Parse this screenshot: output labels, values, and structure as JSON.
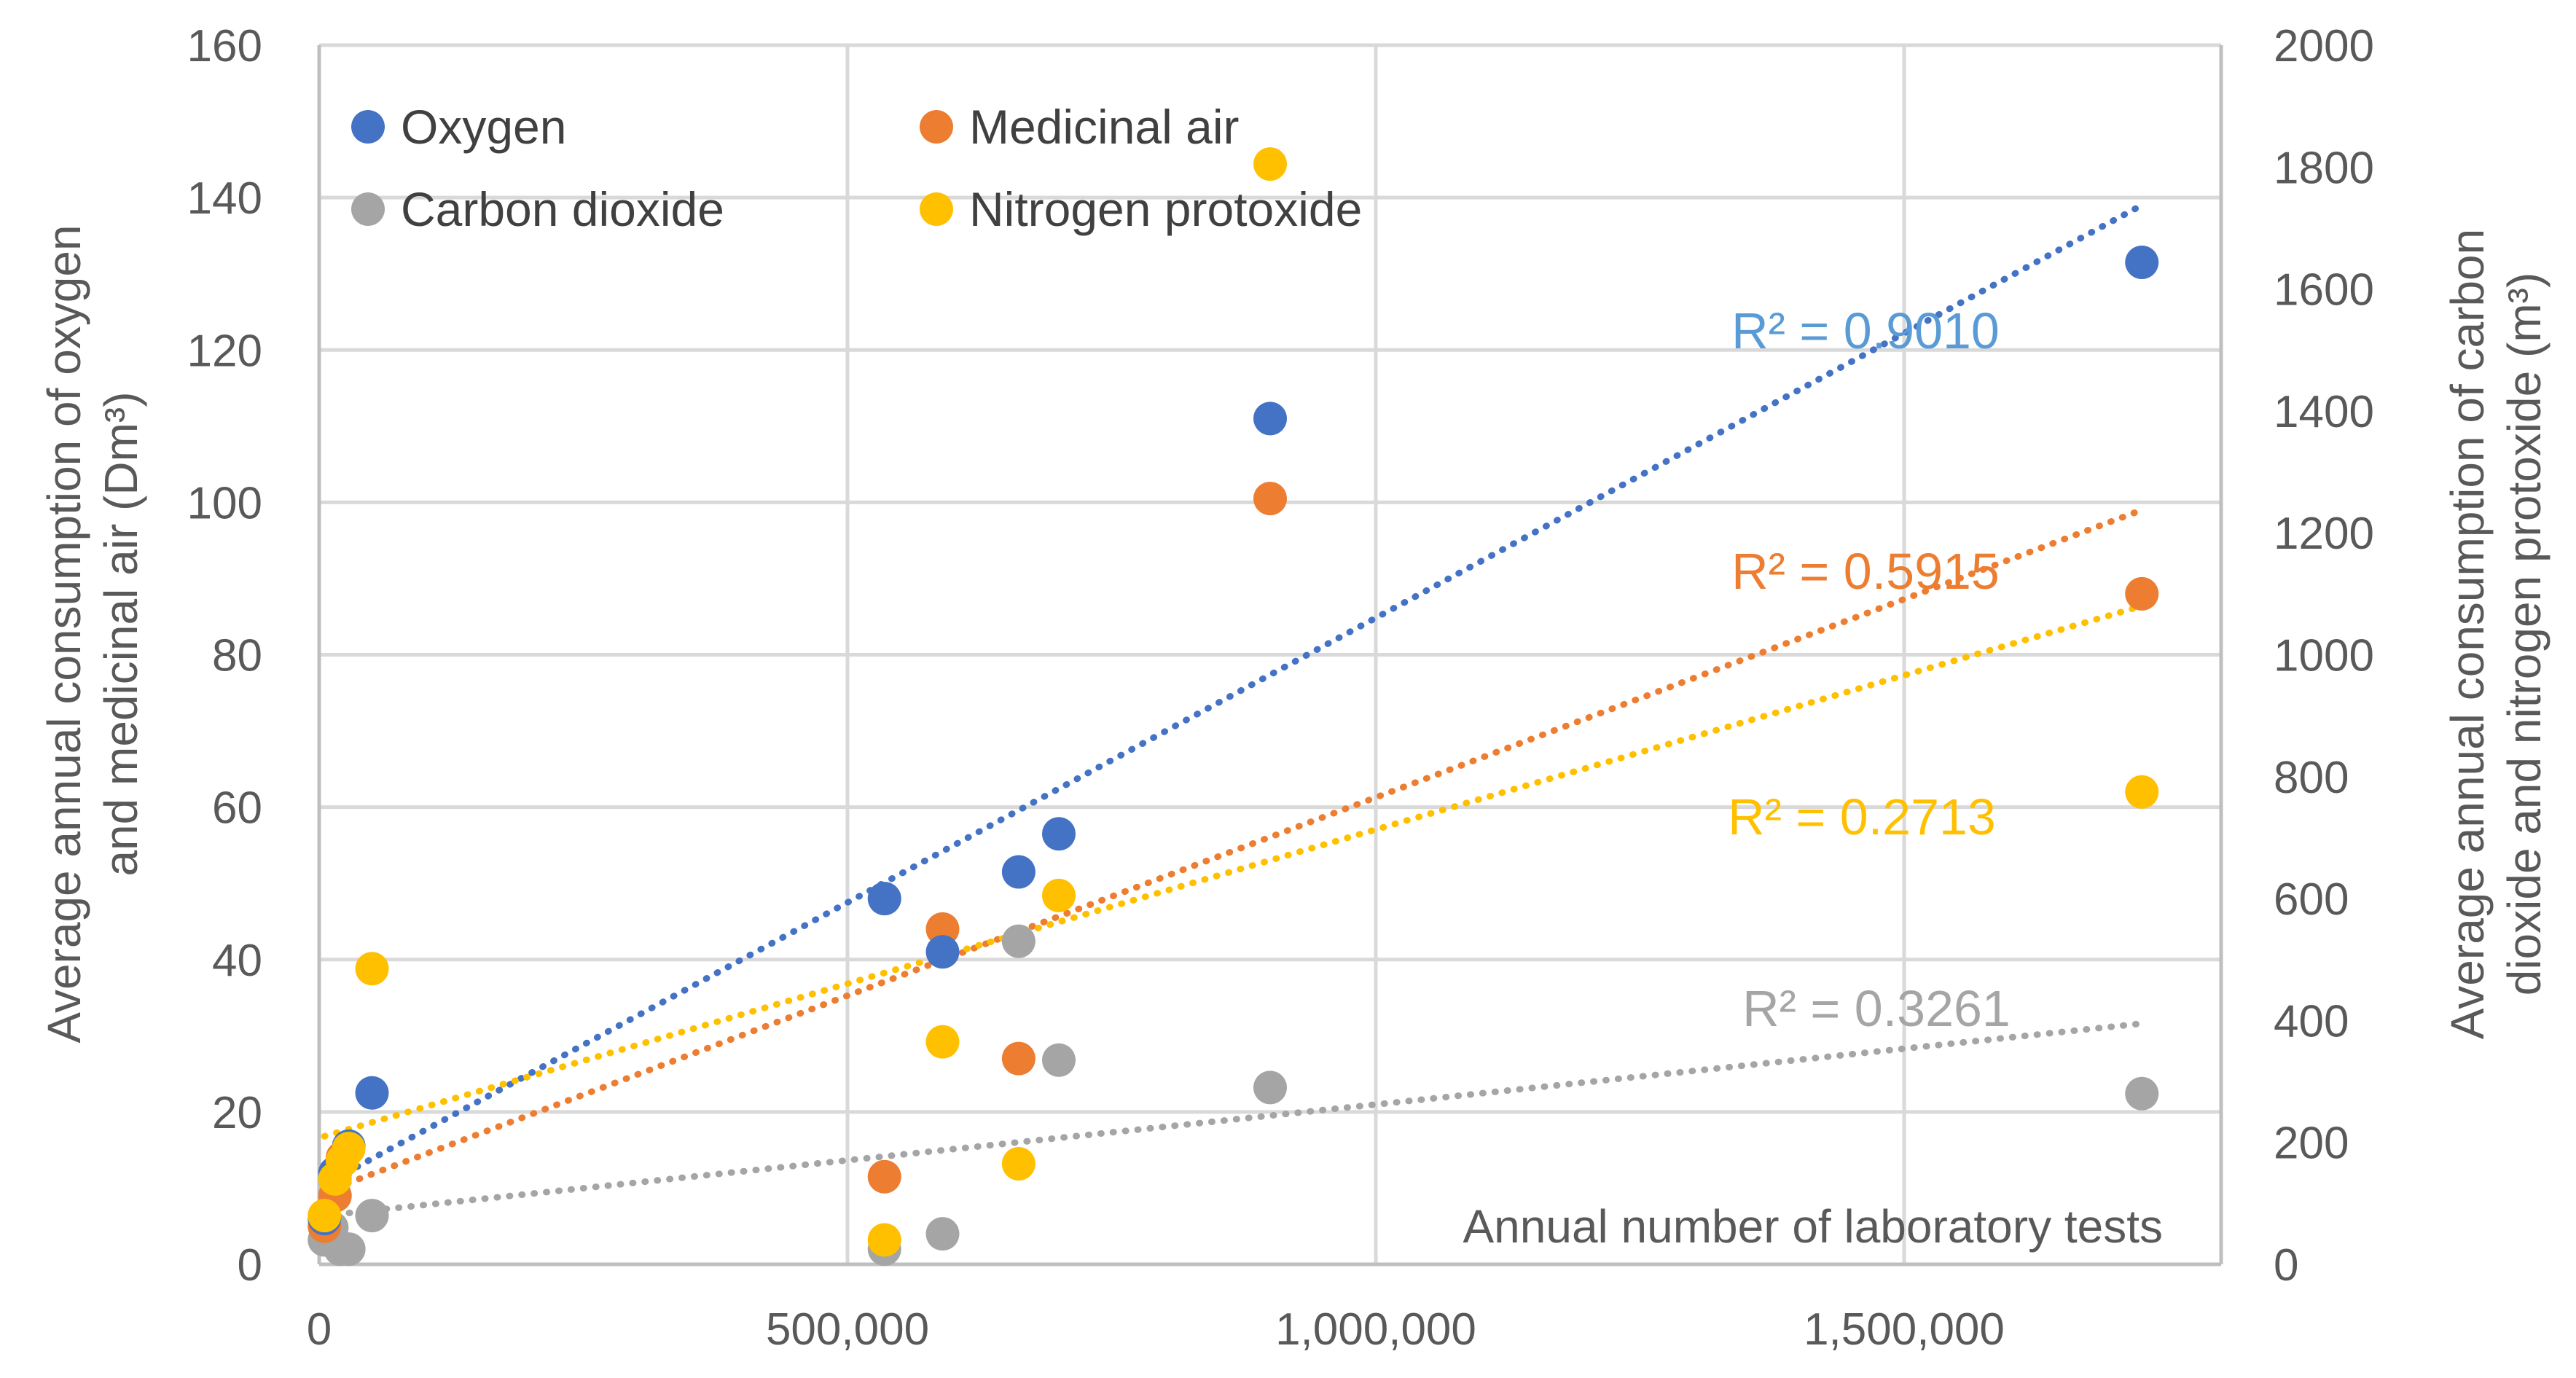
{
  "chart_data": {
    "type": "scatter",
    "title": "",
    "xlabel": "Annual number of laboratory tests",
    "ylabel_left": [
      "Average annual consumption of oxygen",
      "and medicinal air (Dm³)"
    ],
    "ylabel_right": [
      "Average annual consumption of carbon",
      "dioxide and nitrogen protoxide (m³)"
    ],
    "xlim": [
      0,
      1800000
    ],
    "ylim_left": [
      0,
      160
    ],
    "ylim_right": [
      0,
      2000
    ],
    "x_ticks": [
      0,
      500000,
      1000000,
      1500000
    ],
    "x_tick_labels": [
      "0",
      "500,000",
      "1,000,000",
      "1,500,000"
    ],
    "y_left_ticks": [
      0,
      20,
      40,
      60,
      80,
      100,
      120,
      140,
      160
    ],
    "y_left_tick_labels": [
      "0",
      "20",
      "40",
      "60",
      "80",
      "100",
      "120",
      "140",
      "160"
    ],
    "y_right_ticks": [
      0,
      200,
      400,
      600,
      800,
      1000,
      1200,
      1400,
      1600,
      1800,
      2000
    ],
    "y_right_tick_labels": [
      "0",
      "200",
      "400",
      "600",
      "800",
      "1000",
      "1200",
      "1400",
      "1600",
      "1800",
      "2000"
    ],
    "grid": true,
    "legend": "top-left",
    "series": [
      {
        "name": "Oxygen",
        "axis": "left",
        "color": "#4472c4",
        "x": [
          5000,
          15000,
          28000,
          50000,
          535000,
          590000,
          662000,
          700000,
          900000,
          1725000
        ],
        "y": [
          6,
          12,
          15.5,
          22.5,
          48,
          41,
          51.5,
          56.5,
          111,
          131.5
        ],
        "trendline": {
          "x": [
            5000,
            1725000
          ],
          "y": [
            10.5,
            139
          ],
          "label": "R² = 0.9010",
          "color": "#5b9bd5"
        }
      },
      {
        "name": "Medicinal air",
        "axis": "left",
        "color": "#ed7d31",
        "x": [
          5000,
          15000,
          22000,
          535000,
          590000,
          662000,
          900000,
          1725000
        ],
        "y": [
          5,
          9,
          14,
          11.5,
          44,
          27,
          100.5,
          88
        ],
        "trendline": {
          "x": [
            5000,
            1725000
          ],
          "y": [
            9.5,
            99
          ],
          "label": "R² = 0.5915",
          "color": "#ed7d31"
        }
      },
      {
        "name": "Carbon dioxide",
        "axis": "right",
        "color": "#a5a5a5",
        "x": [
          5000,
          12000,
          20000,
          28000,
          50000,
          535000,
          590000,
          662000,
          700000,
          900000,
          1725000
        ],
        "y": [
          40,
          60,
          25,
          25,
          80,
          25,
          50,
          530,
          335,
          290,
          280
        ],
        "trendline": {
          "x": [
            5000,
            1725000
          ],
          "y": [
            80,
            395
          ],
          "label": "R² = 0.3261",
          "color": "#a5a5a5"
        }
      },
      {
        "name": "Nitrogen protoxide",
        "axis": "right",
        "color": "#ffc000",
        "x": [
          5000,
          15000,
          22000,
          28000,
          50000,
          535000,
          590000,
          662000,
          700000,
          900000,
          1725000
        ],
        "y": [
          80,
          140,
          170,
          190,
          485,
          40,
          365,
          165,
          605,
          1805,
          775
        ],
        "trendline": {
          "x": [
            5000,
            1725000
          ],
          "y": [
            210,
            1080
          ],
          "label": "R² = 0.2713",
          "color": "#ffc000"
        }
      }
    ]
  }
}
